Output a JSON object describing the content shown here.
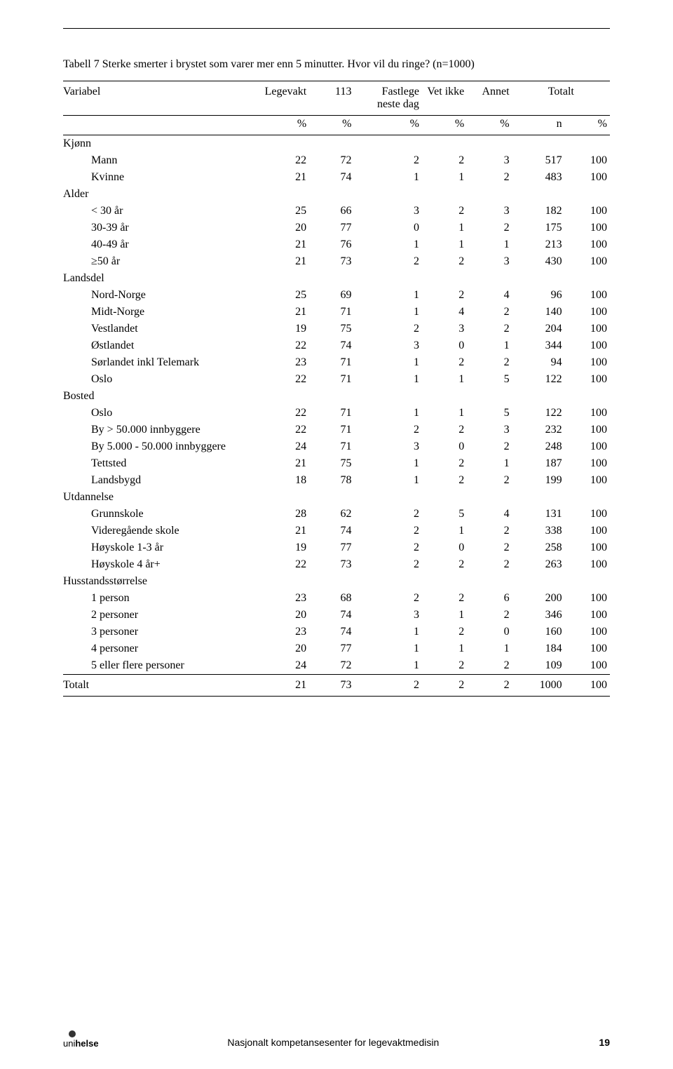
{
  "caption": "Tabell 7 Sterke smerter i brystet som varer mer enn 5 minutter. Hvor vil du ringe? (n=1000)",
  "columns": {
    "variable": "Variabel",
    "legevakt": "Legevakt",
    "c113": "113",
    "fastlege": "Fastlege neste dag",
    "vetikke": "Vet ikke",
    "annet": "Annet",
    "totalt": "Totalt"
  },
  "units": {
    "pct": "%",
    "n": "n"
  },
  "groups": [
    {
      "label": "Kjønn",
      "rows": [
        {
          "label": "Mann",
          "v": [
            "22",
            "72",
            "2",
            "2",
            "3",
            "517",
            "100"
          ]
        },
        {
          "label": "Kvinne",
          "v": [
            "21",
            "74",
            "1",
            "1",
            "2",
            "483",
            "100"
          ]
        }
      ]
    },
    {
      "label": "Alder",
      "rows": [
        {
          "label": "< 30 år",
          "v": [
            "25",
            "66",
            "3",
            "2",
            "3",
            "182",
            "100"
          ]
        },
        {
          "label": "30-39 år",
          "v": [
            "20",
            "77",
            "0",
            "1",
            "2",
            "175",
            "100"
          ]
        },
        {
          "label": "40-49 år",
          "v": [
            "21",
            "76",
            "1",
            "1",
            "1",
            "213",
            "100"
          ]
        },
        {
          "label": "≥50 år",
          "v": [
            "21",
            "73",
            "2",
            "2",
            "3",
            "430",
            "100"
          ]
        }
      ]
    },
    {
      "label": "Landsdel",
      "rows": [
        {
          "label": "Nord-Norge",
          "v": [
            "25",
            "69",
            "1",
            "2",
            "4",
            "96",
            "100"
          ]
        },
        {
          "label": "Midt-Norge",
          "v": [
            "21",
            "71",
            "1",
            "4",
            "2",
            "140",
            "100"
          ]
        },
        {
          "label": "Vestlandet",
          "v": [
            "19",
            "75",
            "2",
            "3",
            "2",
            "204",
            "100"
          ]
        },
        {
          "label": "Østlandet",
          "v": [
            "22",
            "74",
            "3",
            "0",
            "1",
            "344",
            "100"
          ]
        },
        {
          "label": "Sørlandet inkl Telemark",
          "v": [
            "23",
            "71",
            "1",
            "2",
            "2",
            "94",
            "100"
          ]
        },
        {
          "label": "Oslo",
          "v": [
            "22",
            "71",
            "1",
            "1",
            "5",
            "122",
            "100"
          ]
        }
      ]
    },
    {
      "label": "Bosted",
      "rows": [
        {
          "label": "Oslo",
          "v": [
            "22",
            "71",
            "1",
            "1",
            "5",
            "122",
            "100"
          ]
        },
        {
          "label": "By > 50.000 innbyggere",
          "v": [
            "22",
            "71",
            "2",
            "2",
            "3",
            "232",
            "100"
          ]
        },
        {
          "label": "By 5.000 - 50.000 innbyggere",
          "v": [
            "24",
            "71",
            "3",
            "0",
            "2",
            "248",
            "100"
          ]
        },
        {
          "label": "Tettsted",
          "v": [
            "21",
            "75",
            "1",
            "2",
            "1",
            "187",
            "100"
          ]
        },
        {
          "label": "Landsbygd",
          "v": [
            "18",
            "78",
            "1",
            "2",
            "2",
            "199",
            "100"
          ]
        }
      ]
    },
    {
      "label": "Utdannelse",
      "rows": [
        {
          "label": "Grunnskole",
          "v": [
            "28",
            "62",
            "2",
            "5",
            "4",
            "131",
            "100"
          ]
        },
        {
          "label": "Videregående skole",
          "v": [
            "21",
            "74",
            "2",
            "1",
            "2",
            "338",
            "100"
          ]
        },
        {
          "label": "Høyskole 1-3 år",
          "v": [
            "19",
            "77",
            "2",
            "0",
            "2",
            "258",
            "100"
          ]
        },
        {
          "label": "Høyskole 4 år+",
          "v": [
            "22",
            "73",
            "2",
            "2",
            "2",
            "263",
            "100"
          ]
        }
      ]
    },
    {
      "label": "Husstandsstørrelse",
      "rows": [
        {
          "label": "1 person",
          "v": [
            "23",
            "68",
            "2",
            "2",
            "6",
            "200",
            "100"
          ]
        },
        {
          "label": "2 personer",
          "v": [
            "20",
            "74",
            "3",
            "1",
            "2",
            "346",
            "100"
          ]
        },
        {
          "label": "3 personer",
          "v": [
            "23",
            "74",
            "1",
            "2",
            "0",
            "160",
            "100"
          ]
        },
        {
          "label": "4 personer",
          "v": [
            "20",
            "77",
            "1",
            "1",
            "1",
            "184",
            "100"
          ]
        },
        {
          "label": "5 eller flere personer",
          "v": [
            "24",
            "72",
            "1",
            "2",
            "2",
            "109",
            "100"
          ]
        }
      ]
    }
  ],
  "total": {
    "label": "Totalt",
    "v": [
      "21",
      "73",
      "2",
      "2",
      "2",
      "1000",
      "100"
    ]
  },
  "footer": {
    "center": "Nasjonalt kompetansesenter for legevaktmedisin",
    "page": "19",
    "logo_uni": "uni",
    "logo_helse": "helse"
  }
}
